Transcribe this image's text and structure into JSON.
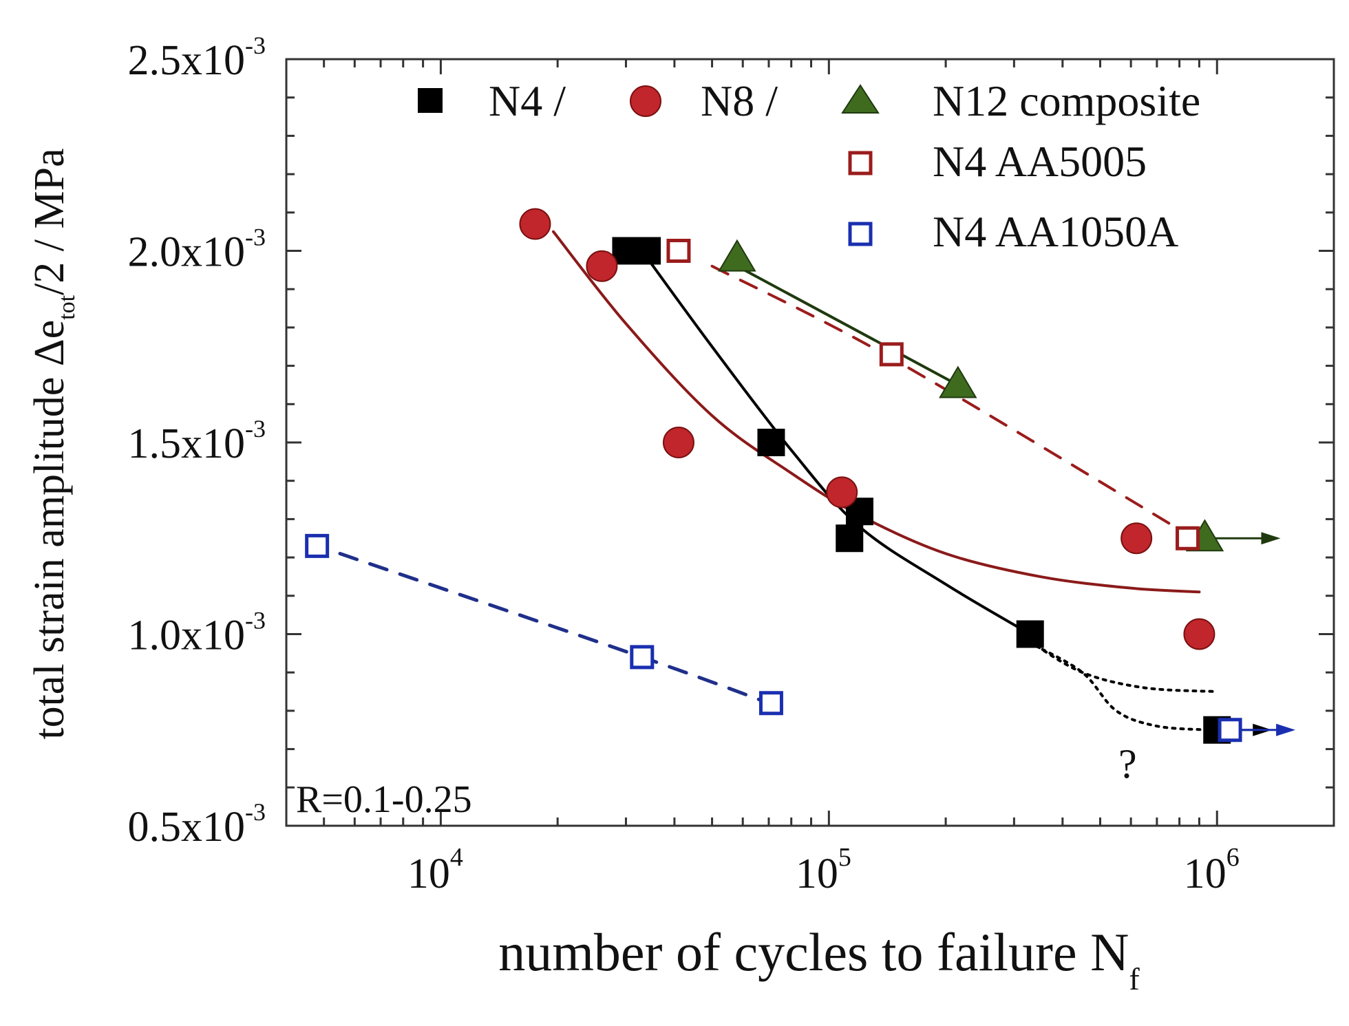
{
  "chart_data": {
    "type": "scatter",
    "title": "",
    "xlabel": "number of cycles to failure N",
    "xlabel_sub": "f",
    "ylabel_pre": "total strain amplitude  Δe",
    "ylabel_sub": "tot",
    "ylabel_post": "/2 / MPa",
    "x_scale": "log",
    "xlim": [
      4000,
      2000000
    ],
    "ylim": [
      0.0005,
      0.0025
    ],
    "x_ticks": [
      {
        "value": 10000,
        "base": "10",
        "exp": "4"
      },
      {
        "value": 100000,
        "base": "10",
        "exp": "5"
      },
      {
        "value": 1000000,
        "base": "10",
        "exp": "6"
      }
    ],
    "y_ticks": [
      {
        "value": 0.0005,
        "mant": "0.5x10",
        "exp": "-3"
      },
      {
        "value": 0.001,
        "mant": "1.0x10",
        "exp": "-3"
      },
      {
        "value": 0.0015,
        "mant": "1.5x10",
        "exp": "-3"
      },
      {
        "value": 0.002,
        "mant": "2.0x10",
        "exp": "-3"
      },
      {
        "value": 0.0025,
        "mant": "2.5x10",
        "exp": "-3"
      }
    ],
    "annotation": "R=0.1-0.25",
    "question_mark": "?",
    "colors": {
      "N4": "#000000",
      "N8": "#c0262b",
      "N8_fit": "#8b1a1a",
      "N12": "#3f6b1f",
      "N12_edge": "#1f3a0f",
      "AA5005": "#9b1c1c",
      "AA1050A": "#1a2fb0",
      "AA1050A_fit": "#1f2f8a"
    },
    "legend": {
      "row1": [
        "N4 /",
        "N8 /",
        "N12 composite"
      ],
      "row2": "N4 AA5005",
      "row3": "N4 AA1050A"
    },
    "series": [
      {
        "name": "N4",
        "marker": "filled-square",
        "points": [
          [
            30000,
            0.002
          ],
          [
            34000,
            0.002
          ],
          [
            71000,
            0.0015
          ],
          [
            113000,
            0.00125
          ],
          [
            120000,
            0.00132
          ],
          [
            330000,
            0.001
          ],
          [
            1000000,
            0.00075
          ]
        ],
        "runout": [
          {
            "x": 1000000,
            "y": 0.00075
          }
        ]
      },
      {
        "name": "N8",
        "marker": "filled-circle",
        "points": [
          [
            17500,
            0.00207
          ],
          [
            26000,
            0.00196
          ],
          [
            41000,
            0.0015
          ],
          [
            108000,
            0.00137
          ],
          [
            620000,
            0.00125
          ],
          [
            900000,
            0.001
          ]
        ]
      },
      {
        "name": "N12 composite",
        "marker": "filled-triangle",
        "points": [
          [
            58000,
            0.00198
          ],
          [
            215000,
            0.00165
          ],
          [
            930000,
            0.00125
          ]
        ],
        "runout": [
          {
            "x": 930000,
            "y": 0.00125
          }
        ]
      },
      {
        "name": "N4 AA5005",
        "marker": "open-square",
        "points": [
          [
            41000,
            0.002
          ],
          [
            145000,
            0.00173
          ],
          [
            840000,
            0.00125
          ]
        ]
      },
      {
        "name": "N4 AA1050A",
        "marker": "open-square",
        "points": [
          [
            4800,
            0.00123
          ],
          [
            33000,
            0.00094
          ],
          [
            71000,
            0.00082
          ],
          [
            1080000,
            0.00075
          ]
        ],
        "runout": [
          {
            "x": 1080000,
            "y": 0.00075
          }
        ]
      }
    ],
    "fit_lines": [
      {
        "name": "N8 fit",
        "style": "solid",
        "points": [
          [
            19500,
            0.00205
          ],
          [
            30000,
            0.00181
          ],
          [
            50000,
            0.00157
          ],
          [
            80000,
            0.00142
          ],
          [
            120000,
            0.00131
          ],
          [
            200000,
            0.00121
          ],
          [
            350000,
            0.00115
          ],
          [
            600000,
            0.00112
          ],
          [
            900000,
            0.00111
          ]
        ]
      },
      {
        "name": "N4 fit",
        "style": "solid",
        "points": [
          [
            33000,
            0.002
          ],
          [
            50000,
            0.00175
          ],
          [
            80000,
            0.00148
          ],
          [
            120000,
            0.00128
          ],
          [
            200000,
            0.00113
          ],
          [
            330000,
            0.001
          ]
        ]
      },
      {
        "name": "N4 extrapolation upper",
        "style": "dotted",
        "points": [
          [
            330000,
            0.00098
          ],
          [
            450000,
            0.0009
          ],
          [
            650000,
            0.00086
          ],
          [
            1000000,
            0.00085
          ]
        ]
      },
      {
        "name": "N4 extrapolation lower",
        "style": "dotted",
        "points": [
          [
            340000,
            0.00097
          ],
          [
            450000,
            0.0009
          ],
          [
            550000,
            0.0008
          ],
          [
            700000,
            0.00076
          ],
          [
            950000,
            0.00075
          ]
        ]
      },
      {
        "name": "N12 fit",
        "style": "solid",
        "points": [
          [
            58000,
            0.00196
          ],
          [
            215000,
            0.00165
          ]
        ]
      },
      {
        "name": "AA5005 fit",
        "style": "dashed",
        "points": [
          [
            50000,
            0.00196
          ],
          [
            145000,
            0.00172
          ],
          [
            840000,
            0.00126
          ]
        ]
      },
      {
        "name": "AA1050A fit",
        "style": "dashed",
        "points": [
          [
            5500,
            0.00121
          ],
          [
            33000,
            0.00094
          ],
          [
            70000,
            0.00082
          ]
        ]
      }
    ]
  }
}
